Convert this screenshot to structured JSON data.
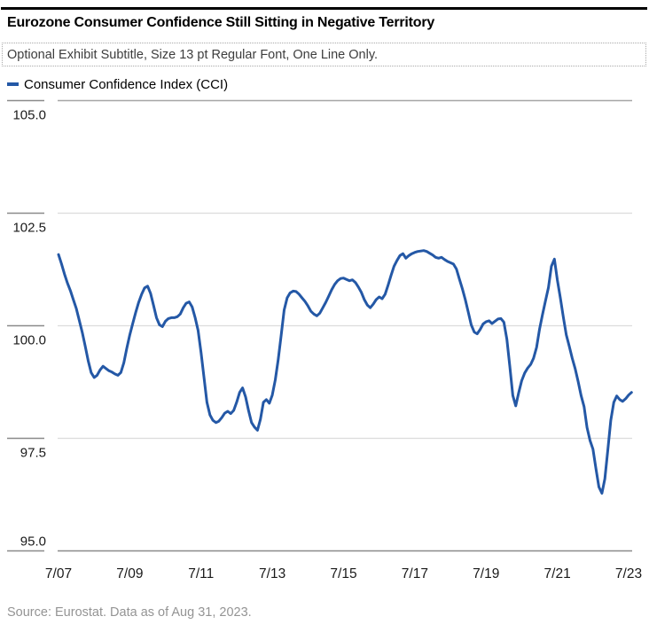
{
  "header": {
    "title": "Eurozone Consumer Confidence Still Sitting in Negative Territory",
    "subtitle": "Optional Exhibit Subtitle, Size 13 pt Regular Font, One Line Only."
  },
  "legend": {
    "series_label": "Consumer Confidence Index (CCI)"
  },
  "footer": {
    "source": "Source: Eurostat. Data as of Aug 31, 2023."
  },
  "colors": {
    "line": "#2458a6",
    "grid_top": "#a6a6a6",
    "grid_inner": "#dcdcdc",
    "axis_line": "#8a8a8a",
    "tick": "#8a8a8a",
    "axis_text": "#1a1a1a"
  },
  "chart_data": {
    "type": "line",
    "title": "Eurozone Consumer Confidence Still Sitting in Negative Territory",
    "xlabel": "",
    "ylabel": "",
    "ylim": [
      95.0,
      105.0
    ],
    "grid": "horizontal-only",
    "legend_position": "top-left",
    "frequency": "monthly",
    "x_unit": "decimal_year",
    "x_start": 2007.5,
    "x_end": 2023.583,
    "y_ticks": [
      {
        "value": 105.0,
        "label": "105.0"
      },
      {
        "value": 102.5,
        "label": "102.5"
      },
      {
        "value": 100.0,
        "label": "100.0"
      },
      {
        "value": 97.5,
        "label": "97.5"
      },
      {
        "value": 95.0,
        "label": "95.0"
      }
    ],
    "x_ticks": [
      {
        "value": 2007.5,
        "label": "7/07"
      },
      {
        "value": 2009.5,
        "label": "7/09"
      },
      {
        "value": 2011.5,
        "label": "7/11"
      },
      {
        "value": 2013.5,
        "label": "7/13"
      },
      {
        "value": 2015.5,
        "label": "7/15"
      },
      {
        "value": 2017.5,
        "label": "7/17"
      },
      {
        "value": 2019.5,
        "label": "7/19"
      },
      {
        "value": 2021.5,
        "label": "7/21"
      },
      {
        "value": 2023.5,
        "label": "7/23"
      }
    ],
    "series": [
      {
        "name": "Consumer Confidence Index (CCI)",
        "color": "#2458a6",
        "y": [
          101.58,
          101.38,
          101.15,
          100.95,
          100.78,
          100.58,
          100.38,
          100.12,
          99.85,
          99.55,
          99.22,
          98.96,
          98.85,
          98.9,
          99.02,
          99.1,
          99.05,
          99.0,
          98.97,
          98.93,
          98.9,
          98.96,
          99.18,
          99.5,
          99.8,
          100.05,
          100.3,
          100.52,
          100.7,
          100.84,
          100.88,
          100.72,
          100.45,
          100.18,
          100.02,
          99.98,
          100.1,
          100.16,
          100.18,
          100.18,
          100.2,
          100.26,
          100.4,
          100.5,
          100.53,
          100.42,
          100.18,
          99.9,
          99.4,
          98.85,
          98.3,
          98.02,
          97.9,
          97.85,
          97.88,
          97.96,
          98.06,
          98.1,
          98.05,
          98.12,
          98.3,
          98.52,
          98.62,
          98.42,
          98.12,
          97.85,
          97.75,
          97.68,
          97.92,
          98.3,
          98.36,
          98.28,
          98.46,
          98.8,
          99.25,
          99.8,
          100.35,
          100.62,
          100.73,
          100.77,
          100.76,
          100.7,
          100.62,
          100.54,
          100.44,
          100.32,
          100.26,
          100.22,
          100.28,
          100.4,
          100.52,
          100.66,
          100.8,
          100.92,
          101.0,
          101.05,
          101.06,
          101.03,
          101.0,
          101.02,
          100.96,
          100.86,
          100.74,
          100.58,
          100.46,
          100.4,
          100.48,
          100.58,
          100.64,
          100.6,
          100.7,
          100.9,
          101.12,
          101.32,
          101.45,
          101.56,
          101.6,
          101.5,
          101.56,
          101.6,
          101.63,
          101.65,
          101.66,
          101.67,
          101.65,
          101.61,
          101.57,
          101.52,
          101.5,
          101.52,
          101.47,
          101.43,
          101.4,
          101.37,
          101.26,
          101.04,
          100.82,
          100.58,
          100.3,
          100.02,
          99.86,
          99.82,
          99.92,
          100.04,
          100.09,
          100.11,
          100.05,
          100.1,
          100.15,
          100.16,
          100.08,
          99.7,
          99.1,
          98.45,
          98.22,
          98.52,
          98.78,
          98.95,
          99.06,
          99.14,
          99.28,
          99.52,
          99.92,
          100.25,
          100.55,
          100.85,
          101.32,
          101.48,
          101.02,
          100.62,
          100.2,
          99.8,
          99.55,
          99.28,
          99.05,
          98.76,
          98.45,
          98.2,
          97.74,
          97.45,
          97.26,
          96.82,
          96.42,
          96.28,
          96.6,
          97.25,
          97.9,
          98.3,
          98.44,
          98.36,
          98.32,
          98.38,
          98.46,
          98.52
        ]
      }
    ]
  }
}
